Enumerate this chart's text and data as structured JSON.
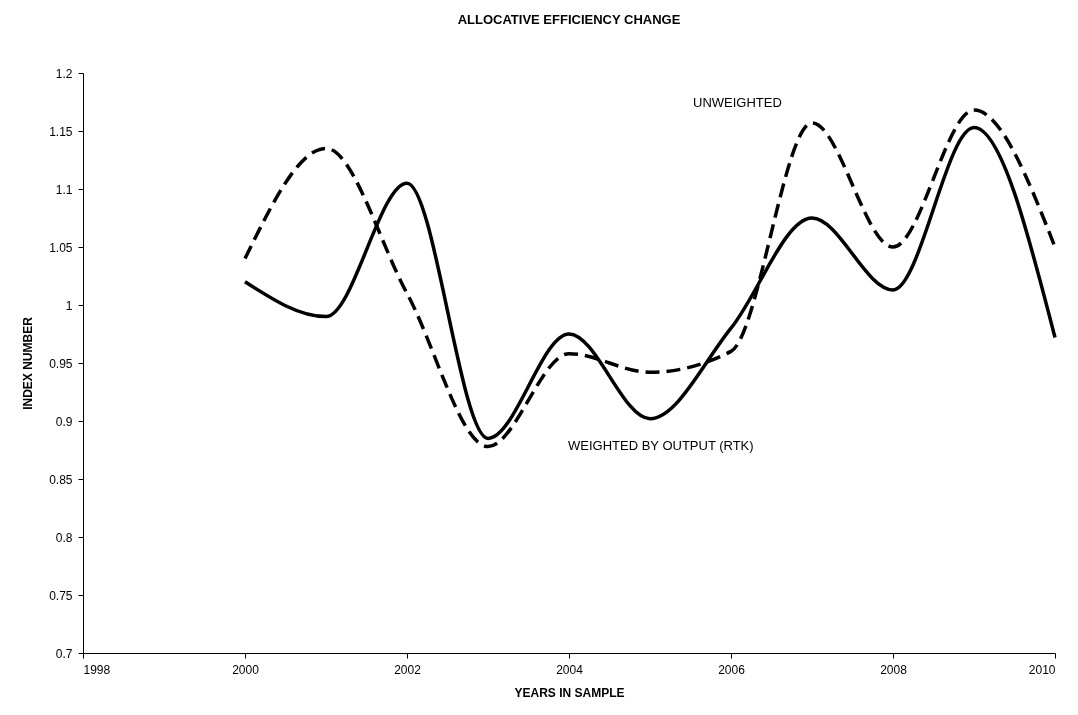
{
  "chart_data": {
    "type": "line",
    "title": "ALLOCATIVE EFFICIENCY CHANGE",
    "xlabel": "YEARS IN SAMPLE",
    "ylabel": "INDEX NUMBER",
    "x": [
      2000,
      2001,
      2002,
      2003,
      2004,
      2005,
      2006,
      2007,
      2008,
      2009,
      2010
    ],
    "series": [
      {
        "name": "UNWEIGHTED",
        "color": "#000000",
        "line_style": "dashed",
        "values": [
          1.04,
          1.135,
          1.01,
          0.878,
          0.958,
          0.942,
          0.96,
          1.157,
          1.05,
          1.168,
          1.05
        ]
      },
      {
        "name": "WEIGHTED BY OUTPUT (RTK)",
        "color": "#000000",
        "line_style": "solid",
        "values": [
          1.02,
          0.99,
          1.105,
          0.885,
          0.975,
          0.902,
          0.98,
          1.075,
          1.013,
          1.153,
          0.972
        ]
      }
    ],
    "xlim": [
      1998,
      2010
    ],
    "xticks": [
      1998,
      2000,
      2002,
      2004,
      2006,
      2008,
      2010
    ],
    "ylim": [
      0.7,
      1.2
    ],
    "yticks": [
      0.7,
      0.75,
      0.8,
      0.85,
      0.9,
      0.95,
      1,
      1.05,
      1.1,
      1.15,
      1.2
    ],
    "grid": false,
    "marker": "none"
  }
}
